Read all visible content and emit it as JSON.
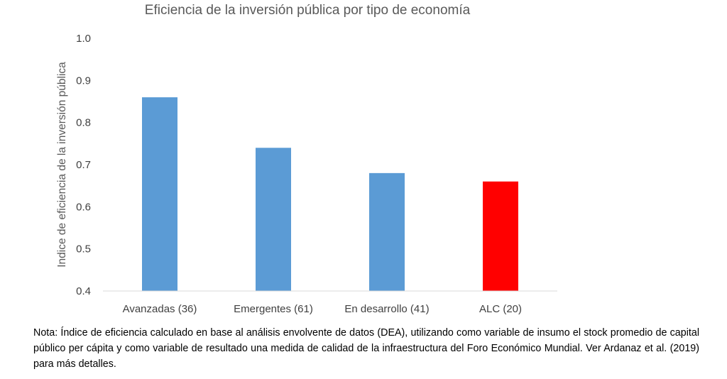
{
  "chart_data": {
    "type": "bar",
    "title": "Eficiencia de la inversión pública por tipo de economía",
    "xlabel": "",
    "ylabel": "Indice de eficiencia de la inversión pública",
    "categories": [
      "Avanzadas (36)",
      "Emergentes (61)",
      "En desarrollo (41)",
      "ALC (20)"
    ],
    "values": [
      0.86,
      0.74,
      0.68,
      0.66
    ],
    "colors": [
      "#5B9BD5",
      "#5B9BD5",
      "#5B9BD5",
      "#FF0000"
    ],
    "ylim": [
      0.4,
      1.0
    ],
    "yticks": [
      "0.4",
      "0.5",
      "0.6",
      "0.7",
      "0.8",
      "0.9",
      "1.0"
    ],
    "grid": false,
    "legend": "none"
  },
  "note": "Nota:  Índice de eficiencia calculado en base al análisis envolvente de datos (DEA), utilizando como variable de insumo el stock promedio de capital público per cápita y como variable de resultado una medida de calidad de la infraestructura del Foro Económico Mundial. Ver Ardanaz et al. (2019) para más detalles."
}
